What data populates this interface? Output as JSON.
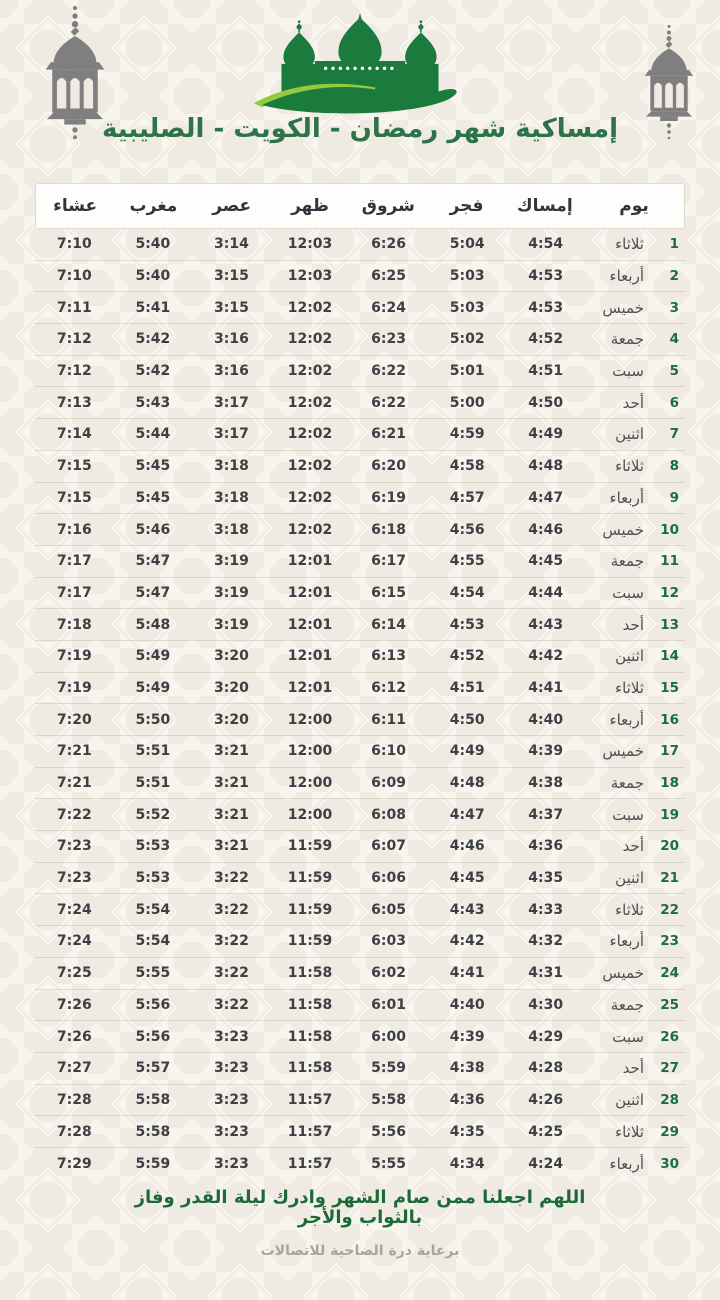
{
  "page": {
    "title": "إمساكية شهر رمضان - الكويت - الصليبية",
    "dua_line1": "اللهم اجعلنا ممن صام الشهر وادرك ليلة القدر وفاز",
    "dua_line2": "بالثواب والأجر",
    "sponsor": "برعاية درة الضاحية للاتصالات"
  },
  "colors": {
    "background_cream": "#f0ebe2",
    "pattern_line": "#f8f5ef",
    "title_green": "#2d7348",
    "mosque_green": "#1b7b3d",
    "wave_light_green": "#95c93f",
    "lantern_gray": "#7f7f7f",
    "time_text": "#3c4044",
    "day_number_green": "#1d6c40",
    "dua_green": "#1d6a39",
    "sponsor_gray": "#a8a5a0"
  },
  "table": {
    "headers": [
      "يوم",
      "إمساك",
      "فجر",
      "شروق",
      "ظهر",
      "عصر",
      "مغرب",
      "عشاء"
    ],
    "rows": [
      {
        "num": "1",
        "day": "ثلاثاء",
        "imsak": "4:54",
        "fajr": "5:04",
        "shurooq": "6:26",
        "dhuhr": "12:03",
        "asr": "3:14",
        "maghrib": "5:40",
        "isha": "7:10"
      },
      {
        "num": "2",
        "day": "أربعاء",
        "imsak": "4:53",
        "fajr": "5:03",
        "shurooq": "6:25",
        "dhuhr": "12:03",
        "asr": "3:15",
        "maghrib": "5:40",
        "isha": "7:10"
      },
      {
        "num": "3",
        "day": "خميس",
        "imsak": "4:53",
        "fajr": "5:03",
        "shurooq": "6:24",
        "dhuhr": "12:02",
        "asr": "3:15",
        "maghrib": "5:41",
        "isha": "7:11"
      },
      {
        "num": "4",
        "day": "جمعة",
        "imsak": "4:52",
        "fajr": "5:02",
        "shurooq": "6:23",
        "dhuhr": "12:02",
        "asr": "3:16",
        "maghrib": "5:42",
        "isha": "7:12"
      },
      {
        "num": "5",
        "day": "سبت",
        "imsak": "4:51",
        "fajr": "5:01",
        "shurooq": "6:22",
        "dhuhr": "12:02",
        "asr": "3:16",
        "maghrib": "5:42",
        "isha": "7:12"
      },
      {
        "num": "6",
        "day": "أحد",
        "imsak": "4:50",
        "fajr": "5:00",
        "shurooq": "6:22",
        "dhuhr": "12:02",
        "asr": "3:17",
        "maghrib": "5:43",
        "isha": "7:13"
      },
      {
        "num": "7",
        "day": "اثنين",
        "imsak": "4:49",
        "fajr": "4:59",
        "shurooq": "6:21",
        "dhuhr": "12:02",
        "asr": "3:17",
        "maghrib": "5:44",
        "isha": "7:14"
      },
      {
        "num": "8",
        "day": "ثلاثاء",
        "imsak": "4:48",
        "fajr": "4:58",
        "shurooq": "6:20",
        "dhuhr": "12:02",
        "asr": "3:18",
        "maghrib": "5:45",
        "isha": "7:15"
      },
      {
        "num": "9",
        "day": "أربعاء",
        "imsak": "4:47",
        "fajr": "4:57",
        "shurooq": "6:19",
        "dhuhr": "12:02",
        "asr": "3:18",
        "maghrib": "5:45",
        "isha": "7:15"
      },
      {
        "num": "10",
        "day": "خميس",
        "imsak": "4:46",
        "fajr": "4:56",
        "shurooq": "6:18",
        "dhuhr": "12:02",
        "asr": "3:18",
        "maghrib": "5:46",
        "isha": "7:16"
      },
      {
        "num": "11",
        "day": "جمعة",
        "imsak": "4:45",
        "fajr": "4:55",
        "shurooq": "6:17",
        "dhuhr": "12:01",
        "asr": "3:19",
        "maghrib": "5:47",
        "isha": "7:17"
      },
      {
        "num": "12",
        "day": "سبت",
        "imsak": "4:44",
        "fajr": "4:54",
        "shurooq": "6:15",
        "dhuhr": "12:01",
        "asr": "3:19",
        "maghrib": "5:47",
        "isha": "7:17"
      },
      {
        "num": "13",
        "day": "أحد",
        "imsak": "4:43",
        "fajr": "4:53",
        "shurooq": "6:14",
        "dhuhr": "12:01",
        "asr": "3:19",
        "maghrib": "5:48",
        "isha": "7:18"
      },
      {
        "num": "14",
        "day": "اثنين",
        "imsak": "4:42",
        "fajr": "4:52",
        "shurooq": "6:13",
        "dhuhr": "12:01",
        "asr": "3:20",
        "maghrib": "5:49",
        "isha": "7:19"
      },
      {
        "num": "15",
        "day": "ثلاثاء",
        "imsak": "4:41",
        "fajr": "4:51",
        "shurooq": "6:12",
        "dhuhr": "12:01",
        "asr": "3:20",
        "maghrib": "5:49",
        "isha": "7:19"
      },
      {
        "num": "16",
        "day": "أربعاء",
        "imsak": "4:40",
        "fajr": "4:50",
        "shurooq": "6:11",
        "dhuhr": "12:00",
        "asr": "3:20",
        "maghrib": "5:50",
        "isha": "7:20"
      },
      {
        "num": "17",
        "day": "خميس",
        "imsak": "4:39",
        "fajr": "4:49",
        "shurooq": "6:10",
        "dhuhr": "12:00",
        "asr": "3:21",
        "maghrib": "5:51",
        "isha": "7:21"
      },
      {
        "num": "18",
        "day": "جمعة",
        "imsak": "4:38",
        "fajr": "4:48",
        "shurooq": "6:09",
        "dhuhr": "12:00",
        "asr": "3:21",
        "maghrib": "5:51",
        "isha": "7:21"
      },
      {
        "num": "19",
        "day": "سبت",
        "imsak": "4:37",
        "fajr": "4:47",
        "shurooq": "6:08",
        "dhuhr": "12:00",
        "asr": "3:21",
        "maghrib": "5:52",
        "isha": "7:22"
      },
      {
        "num": "20",
        "day": "أحد",
        "imsak": "4:36",
        "fajr": "4:46",
        "shurooq": "6:07",
        "dhuhr": "11:59",
        "asr": "3:21",
        "maghrib": "5:53",
        "isha": "7:23"
      },
      {
        "num": "21",
        "day": "اثنين",
        "imsak": "4:35",
        "fajr": "4:45",
        "shurooq": "6:06",
        "dhuhr": "11:59",
        "asr": "3:22",
        "maghrib": "5:53",
        "isha": "7:23"
      },
      {
        "num": "22",
        "day": "ثلاثاء",
        "imsak": "4:33",
        "fajr": "4:43",
        "shurooq": "6:05",
        "dhuhr": "11:59",
        "asr": "3:22",
        "maghrib": "5:54",
        "isha": "7:24"
      },
      {
        "num": "23",
        "day": "أربعاء",
        "imsak": "4:32",
        "fajr": "4:42",
        "shurooq": "6:03",
        "dhuhr": "11:59",
        "asr": "3:22",
        "maghrib": "5:54",
        "isha": "7:24"
      },
      {
        "num": "24",
        "day": "خميس",
        "imsak": "4:31",
        "fajr": "4:41",
        "shurooq": "6:02",
        "dhuhr": "11:58",
        "asr": "3:22",
        "maghrib": "5:55",
        "isha": "7:25"
      },
      {
        "num": "25",
        "day": "جمعة",
        "imsak": "4:30",
        "fajr": "4:40",
        "shurooq": "6:01",
        "dhuhr": "11:58",
        "asr": "3:22",
        "maghrib": "5:56",
        "isha": "7:26"
      },
      {
        "num": "26",
        "day": "سبت",
        "imsak": "4:29",
        "fajr": "4:39",
        "shurooq": "6:00",
        "dhuhr": "11:58",
        "asr": "3:23",
        "maghrib": "5:56",
        "isha": "7:26"
      },
      {
        "num": "27",
        "day": "أحد",
        "imsak": "4:28",
        "fajr": "4:38",
        "shurooq": "5:59",
        "dhuhr": "11:58",
        "asr": "3:23",
        "maghrib": "5:57",
        "isha": "7:27"
      },
      {
        "num": "28",
        "day": "اثنين",
        "imsak": "4:26",
        "fajr": "4:36",
        "shurooq": "5:58",
        "dhuhr": "11:57",
        "asr": "3:23",
        "maghrib": "5:58",
        "isha": "7:28"
      },
      {
        "num": "29",
        "day": "ثلاثاء",
        "imsak": "4:25",
        "fajr": "4:35",
        "shurooq": "5:56",
        "dhuhr": "11:57",
        "asr": "3:23",
        "maghrib": "5:58",
        "isha": "7:28"
      },
      {
        "num": "30",
        "day": "أربعاء",
        "imsak": "4:24",
        "fajr": "4:34",
        "shurooq": "5:55",
        "dhuhr": "11:57",
        "asr": "3:23",
        "maghrib": "5:59",
        "isha": "7:29"
      }
    ]
  }
}
